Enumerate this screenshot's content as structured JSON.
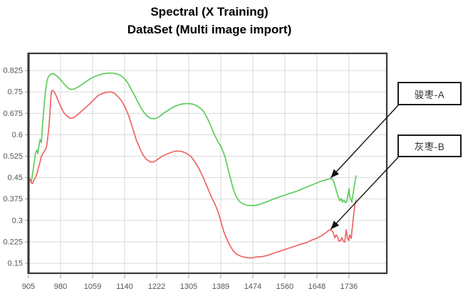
{
  "title": {
    "line1": "Spectral (X Training)",
    "line2": "DataSet (Multi image import)"
  },
  "colors": {
    "grid": "#d9d9d9",
    "axis_border": "#3a3a3a",
    "tick": "#999999",
    "tick_label": "#555555",
    "arrow": "#111111",
    "series_a": "#5ccc5c",
    "series_b": "#ee6565"
  },
  "chart_data": {
    "type": "line",
    "title": "Spectral (X Training) DataSet (Multi image import)",
    "xlabel": "",
    "ylabel": "",
    "grid": true,
    "x_ticks": [
      905,
      980,
      1059,
      1140,
      1222,
      1305,
      1389,
      1474,
      1560,
      1648,
      1736
    ],
    "y_ticks": [
      0.825,
      0.75,
      0.675,
      0.6,
      0.525,
      0.45,
      0.375,
      0.3,
      0.225,
      0.15
    ],
    "points_x_unit": "tick_index",
    "xlim": [
      0,
      11.18
    ],
    "ylim": [
      0.115,
      0.885
    ],
    "series": [
      {
        "name": "骏枣-A",
        "color_key": "series_a",
        "points": [
          [
            0.02,
            0.449
          ],
          [
            0.09,
            0.436
          ],
          [
            0.13,
            0.464
          ],
          [
            0.18,
            0.504
          ],
          [
            0.22,
            0.538
          ],
          [
            0.27,
            0.546
          ],
          [
            0.29,
            0.533
          ],
          [
            0.33,
            0.563
          ],
          [
            0.36,
            0.583
          ],
          [
            0.4,
            0.573
          ],
          [
            0.42,
            0.603
          ],
          [
            0.44,
            0.636
          ],
          [
            0.49,
            0.703
          ],
          [
            0.53,
            0.753
          ],
          [
            0.58,
            0.79
          ],
          [
            0.62,
            0.803
          ],
          [
            0.67,
            0.81
          ],
          [
            0.73,
            0.814
          ],
          [
            0.8,
            0.813
          ],
          [
            0.89,
            0.805
          ],
          [
            1.0,
            0.793
          ],
          [
            1.11,
            0.778
          ],
          [
            1.22,
            0.765
          ],
          [
            1.31,
            0.759
          ],
          [
            1.42,
            0.76
          ],
          [
            1.56,
            0.768
          ],
          [
            1.69,
            0.778
          ],
          [
            1.82,
            0.788
          ],
          [
            1.96,
            0.798
          ],
          [
            2.09,
            0.805
          ],
          [
            2.22,
            0.81
          ],
          [
            2.36,
            0.814
          ],
          [
            2.49,
            0.816
          ],
          [
            2.62,
            0.816
          ],
          [
            2.76,
            0.813
          ],
          [
            2.87,
            0.808
          ],
          [
            2.98,
            0.798
          ],
          [
            3.09,
            0.783
          ],
          [
            3.2,
            0.76
          ],
          [
            3.31,
            0.738
          ],
          [
            3.42,
            0.713
          ],
          [
            3.53,
            0.69
          ],
          [
            3.64,
            0.673
          ],
          [
            3.73,
            0.663
          ],
          [
            3.82,
            0.657
          ],
          [
            3.91,
            0.656
          ],
          [
            4.0,
            0.658
          ],
          [
            4.11,
            0.666
          ],
          [
            4.22,
            0.676
          ],
          [
            4.36,
            0.686
          ],
          [
            4.49,
            0.695
          ],
          [
            4.62,
            0.702
          ],
          [
            4.76,
            0.707
          ],
          [
            4.89,
            0.709
          ],
          [
            5.02,
            0.709
          ],
          [
            5.13,
            0.707
          ],
          [
            5.24,
            0.702
          ],
          [
            5.36,
            0.693
          ],
          [
            5.47,
            0.681
          ],
          [
            5.58,
            0.658
          ],
          [
            5.69,
            0.631
          ],
          [
            5.8,
            0.601
          ],
          [
            5.91,
            0.576
          ],
          [
            6.02,
            0.556
          ],
          [
            6.13,
            0.524
          ],
          [
            6.22,
            0.484
          ],
          [
            6.31,
            0.444
          ],
          [
            6.4,
            0.406
          ],
          [
            6.49,
            0.382
          ],
          [
            6.58,
            0.367
          ],
          [
            6.69,
            0.358
          ],
          [
            6.82,
            0.353
          ],
          [
            6.98,
            0.352
          ],
          [
            7.16,
            0.354
          ],
          [
            7.36,
            0.362
          ],
          [
            7.58,
            0.372
          ],
          [
            7.82,
            0.382
          ],
          [
            8.09,
            0.392
          ],
          [
            8.36,
            0.402
          ],
          [
            8.62,
            0.414
          ],
          [
            8.84,
            0.424
          ],
          [
            9.07,
            0.435
          ],
          [
            9.24,
            0.441
          ],
          [
            9.36,
            0.445
          ],
          [
            9.42,
            0.446
          ],
          [
            9.49,
            0.444
          ],
          [
            9.53,
            0.434
          ],
          [
            9.58,
            0.416
          ],
          [
            9.62,
            0.399
          ],
          [
            9.67,
            0.381
          ],
          [
            9.71,
            0.369
          ],
          [
            9.76,
            0.377
          ],
          [
            9.8,
            0.364
          ],
          [
            9.84,
            0.371
          ],
          [
            9.89,
            0.362
          ],
          [
            9.93,
            0.367
          ],
          [
            9.98,
            0.396
          ],
          [
            10.0,
            0.411
          ],
          [
            10.02,
            0.389
          ],
          [
            10.07,
            0.369
          ],
          [
            10.09,
            0.364
          ],
          [
            10.13,
            0.394
          ],
          [
            10.16,
            0.416
          ],
          [
            10.22,
            0.456
          ]
        ]
      },
      {
        "name": "灰枣-B",
        "color_key": "series_b",
        "points": [
          [
            0.04,
            0.444
          ],
          [
            0.09,
            0.431
          ],
          [
            0.13,
            0.429
          ],
          [
            0.18,
            0.444
          ],
          [
            0.22,
            0.451
          ],
          [
            0.27,
            0.466
          ],
          [
            0.31,
            0.484
          ],
          [
            0.36,
            0.504
          ],
          [
            0.4,
            0.524
          ],
          [
            0.44,
            0.533
          ],
          [
            0.49,
            0.541
          ],
          [
            0.53,
            0.548
          ],
          [
            0.56,
            0.558
          ],
          [
            0.58,
            0.571
          ],
          [
            0.6,
            0.591
          ],
          [
            0.62,
            0.608
          ],
          [
            0.64,
            0.633
          ],
          [
            0.67,
            0.673
          ],
          [
            0.69,
            0.715
          ],
          [
            0.71,
            0.745
          ],
          [
            0.73,
            0.755
          ],
          [
            0.78,
            0.753
          ],
          [
            0.84,
            0.743
          ],
          [
            0.93,
            0.718
          ],
          [
            1.02,
            0.695
          ],
          [
            1.11,
            0.676
          ],
          [
            1.2,
            0.666
          ],
          [
            1.29,
            0.658
          ],
          [
            1.4,
            0.659
          ],
          [
            1.51,
            0.668
          ],
          [
            1.64,
            0.681
          ],
          [
            1.78,
            0.695
          ],
          [
            1.91,
            0.708
          ],
          [
            2.04,
            0.723
          ],
          [
            2.18,
            0.738
          ],
          [
            2.31,
            0.745
          ],
          [
            2.44,
            0.749
          ],
          [
            2.58,
            0.75
          ],
          [
            2.69,
            0.745
          ],
          [
            2.8,
            0.733
          ],
          [
            2.91,
            0.718
          ],
          [
            3.02,
            0.695
          ],
          [
            3.13,
            0.666
          ],
          [
            3.24,
            0.626
          ],
          [
            3.36,
            0.583
          ],
          [
            3.47,
            0.553
          ],
          [
            3.58,
            0.528
          ],
          [
            3.69,
            0.513
          ],
          [
            3.8,
            0.505
          ],
          [
            3.91,
            0.505
          ],
          [
            4.02,
            0.513
          ],
          [
            4.16,
            0.524
          ],
          [
            4.29,
            0.531
          ],
          [
            4.44,
            0.538
          ],
          [
            4.6,
            0.543
          ],
          [
            4.76,
            0.542
          ],
          [
            4.91,
            0.536
          ],
          [
            5.07,
            0.524
          ],
          [
            5.2,
            0.504
          ],
          [
            5.33,
            0.479
          ],
          [
            5.47,
            0.446
          ],
          [
            5.58,
            0.416
          ],
          [
            5.69,
            0.386
          ],
          [
            5.8,
            0.362
          ],
          [
            5.91,
            0.332
          ],
          [
            6.0,
            0.299
          ],
          [
            6.09,
            0.262
          ],
          [
            6.18,
            0.237
          ],
          [
            6.27,
            0.215
          ],
          [
            6.38,
            0.195
          ],
          [
            6.49,
            0.182
          ],
          [
            6.62,
            0.175
          ],
          [
            6.78,
            0.17
          ],
          [
            6.93,
            0.168
          ],
          [
            7.11,
            0.172
          ],
          [
            7.29,
            0.173
          ],
          [
            7.47,
            0.178
          ],
          [
            7.67,
            0.186
          ],
          [
            7.87,
            0.193
          ],
          [
            8.07,
            0.201
          ],
          [
            8.27,
            0.208
          ],
          [
            8.47,
            0.216
          ],
          [
            8.67,
            0.222
          ],
          [
            8.84,
            0.231
          ],
          [
            9.02,
            0.239
          ],
          [
            9.18,
            0.249
          ],
          [
            9.29,
            0.258
          ],
          [
            9.38,
            0.266
          ],
          [
            9.44,
            0.268
          ],
          [
            9.51,
            0.257
          ],
          [
            9.56,
            0.239
          ],
          [
            9.6,
            0.249
          ],
          [
            9.64,
            0.244
          ],
          [
            9.69,
            0.227
          ],
          [
            9.73,
            0.229
          ],
          [
            9.78,
            0.239
          ],
          [
            9.82,
            0.227
          ],
          [
            9.87,
            0.224
          ],
          [
            9.91,
            0.267
          ],
          [
            9.96,
            0.237
          ],
          [
            10.0,
            0.229
          ],
          [
            10.02,
            0.249
          ],
          [
            10.07,
            0.237
          ],
          [
            10.09,
            0.262
          ],
          [
            10.11,
            0.279
          ],
          [
            10.13,
            0.304
          ],
          [
            10.16,
            0.331
          ],
          [
            10.2,
            0.364
          ],
          [
            10.22,
            0.371
          ]
        ]
      }
    ],
    "annotations": [
      {
        "label": "骏枣-A",
        "arrow_to": [
          9.43,
          0.449
        ]
      },
      {
        "label": "灰枣-B",
        "arrow_to": [
          9.43,
          0.269
        ]
      }
    ],
    "legend_position": "right-outside-boxes"
  }
}
